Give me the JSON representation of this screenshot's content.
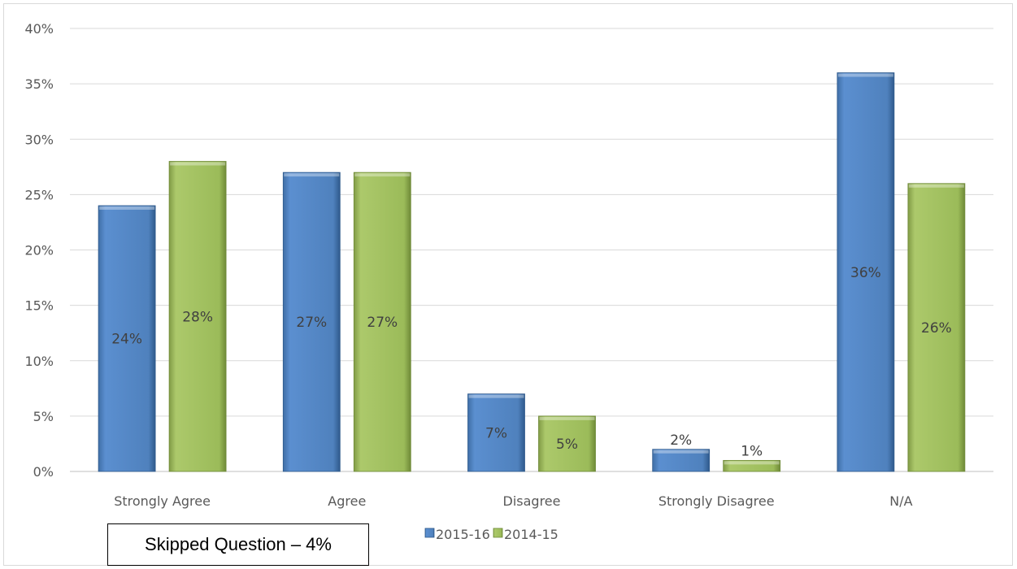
{
  "chart_data": {
    "type": "bar",
    "categories": [
      "Strongly Agree",
      "Agree",
      "Disagree",
      "Strongly Disagree",
      "N/A"
    ],
    "series": [
      {
        "name": "2015-16",
        "values": [
          24,
          27,
          7,
          2,
          36
        ],
        "labels": [
          "24%",
          "27%",
          "7%",
          "2%",
          "36%"
        ],
        "color": "#4f81bd"
      },
      {
        "name": "2014-15",
        "values": [
          28,
          27,
          5,
          1,
          26
        ],
        "labels": [
          "28%",
          "27%",
          "5%",
          "1%",
          "26%"
        ],
        "color": "#9bbb59"
      }
    ],
    "y_ticks": [
      "0%",
      "5%",
      "10%",
      "15%",
      "20%",
      "25%",
      "30%",
      "35%",
      "40%"
    ],
    "ylim": [
      0,
      40
    ],
    "grid": true,
    "legend_position": "bottom"
  },
  "note": {
    "text": "Skipped Question – 4%"
  }
}
